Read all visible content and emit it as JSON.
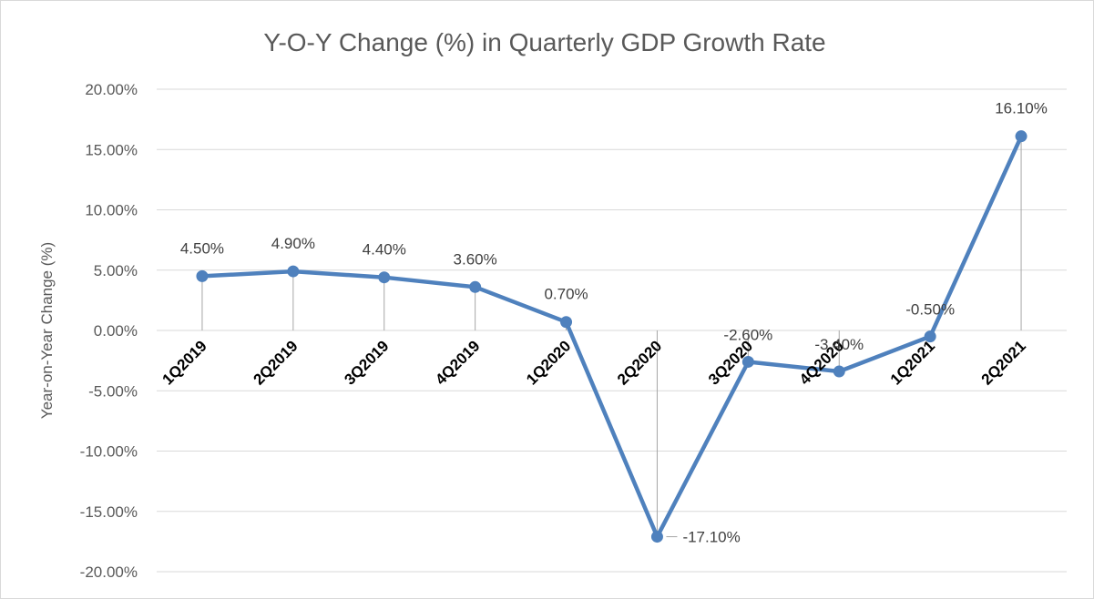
{
  "chart_data": {
    "type": "line",
    "title": "Y-O-Y Change (%) in Quarterly GDP Growth Rate",
    "xlabel": "",
    "ylabel": "Year-on-Year Change (%)",
    "categories": [
      "1Q2019",
      "2Q2019",
      "3Q2019",
      "4Q2019",
      "1Q2020",
      "2Q2020",
      "3Q2020",
      "4Q2020",
      "1Q2021",
      "2Q2021"
    ],
    "series": [
      {
        "values": [
          4.5,
          4.9,
          4.4,
          3.6,
          0.7,
          -17.1,
          -2.6,
          -3.4,
          -0.5,
          16.1
        ],
        "data_labels": [
          "4.50%",
          "4.90%",
          "4.40%",
          "3.60%",
          "0.70%",
          "-17.10%",
          "-2.60%",
          "-3.40%",
          "-0.50%",
          "16.10%"
        ],
        "color": "#4f81bd"
      }
    ],
    "ylim": [
      -20,
      20
    ],
    "yticks": [
      20,
      15,
      10,
      5,
      0,
      -5,
      -10,
      -15,
      -20
    ],
    "ytick_labels": [
      "20.00%",
      "15.00%",
      "10.00%",
      "5.00%",
      "0.00%",
      "-5.00%",
      "-10.00%",
      "-15.00%",
      "-20.00%"
    ],
    "grid": true,
    "drop_lines": true,
    "legend": "none",
    "colors": {
      "line": "#4f81bd",
      "grid": "#d9d9d9",
      "drop_line": "#a6a6a6",
      "text": "#595959"
    }
  }
}
